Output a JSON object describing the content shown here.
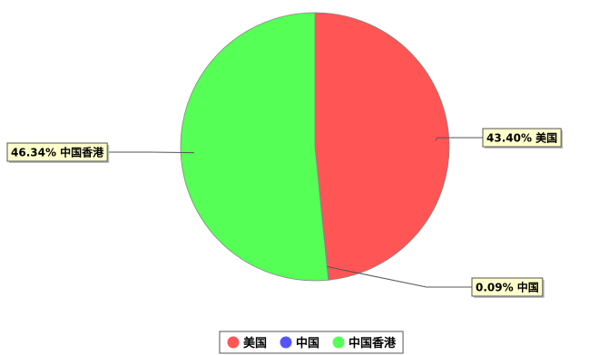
{
  "chart_data": {
    "type": "pie",
    "title": "",
    "legend_position": "bottom",
    "slices": [
      {
        "name": "美国",
        "value": 43.4,
        "label": "43.40% 美国",
        "color": "#ff5555"
      },
      {
        "name": "中国",
        "value": 0.09,
        "label": "0.09% 中国",
        "color": "#5555ff"
      },
      {
        "name": "中国香港",
        "value": 46.34,
        "label": "46.34% 中国香港",
        "color": "#55ff55"
      }
    ]
  }
}
